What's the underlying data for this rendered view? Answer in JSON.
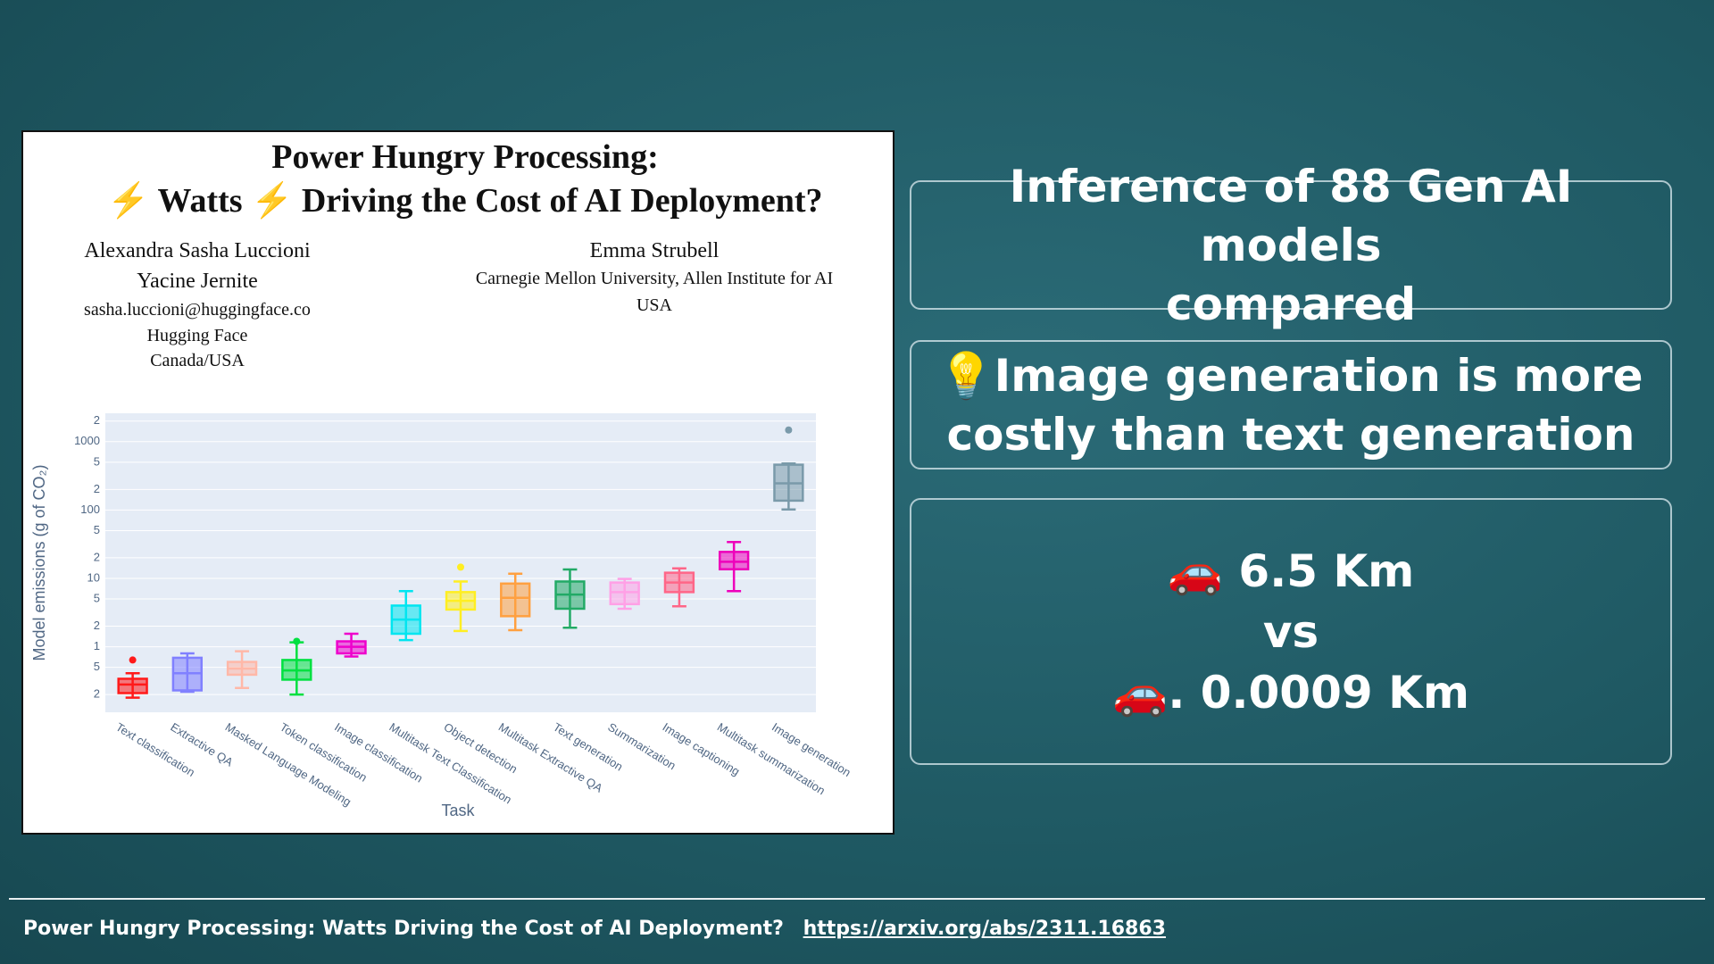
{
  "paper": {
    "title_line1": "Power Hungry Processing:",
    "title_line2": "⚡ Watts ⚡ Driving the Cost of AI Deployment?",
    "left_authors": [
      "Alexandra Sasha Luccioni",
      "Yacine Jernite",
      "sasha.luccioni@huggingface.co",
      "Hugging Face",
      "Canada/USA"
    ],
    "right_authors": [
      "Emma Strubell",
      "Carnegie Mellon University, Allen Institute for AI",
      "USA"
    ]
  },
  "chart_data": {
    "type": "box",
    "ylabel": "Model emissions (g of CO₂)",
    "xlabel": "Task",
    "log_y": true,
    "grid": true,
    "ylim": [
      0.11,
      2600
    ],
    "yticks": [
      {
        "value": 0.2,
        "label": "2"
      },
      {
        "value": 0.5,
        "label": "5"
      },
      1,
      2,
      5,
      10,
      {
        "value": 20,
        "label": "2"
      },
      {
        "value": 50,
        "label": "5"
      },
      100,
      {
        "value": 200,
        "label": "2"
      },
      {
        "value": 500,
        "label": "5"
      },
      1000,
      {
        "value": 2000,
        "label": "2"
      }
    ],
    "categories": [
      "Text classification",
      "Extractive QA",
      "Masked Language Modeling",
      "Token classification",
      "Image classification",
      "Multitask Text Classification",
      "Object detection",
      "Multitask Extractive QA",
      "Text generation",
      "Summarization",
      "Image captioning",
      "Multitask summarization",
      "Image generation"
    ],
    "colors": [
      "#ff1a1a",
      "#8080ff",
      "#ffb8a8",
      "#00e040",
      "#ee00cc",
      "#00e5f0",
      "#ffee22",
      "#ffa040",
      "#22aa66",
      "#ffa0e6",
      "#ff6688",
      "#ee00bb",
      "#7a9aaa"
    ],
    "boxes": [
      {
        "min": 0.18,
        "q1": 0.21,
        "median": 0.28,
        "q3": 0.34,
        "max": 0.41,
        "outliers": [
          0.64
        ]
      },
      {
        "min": 0.22,
        "q1": 0.23,
        "median": 0.41,
        "q3": 0.69,
        "max": 0.8,
        "outliers": []
      },
      {
        "min": 0.25,
        "q1": 0.39,
        "median": 0.48,
        "q3": 0.6,
        "max": 0.86,
        "outliers": []
      },
      {
        "min": 0.2,
        "q1": 0.33,
        "median": 0.45,
        "q3": 0.64,
        "max": 1.16,
        "outliers": [
          1.2
        ]
      },
      {
        "min": 0.72,
        "q1": 0.8,
        "median": 1.0,
        "q3": 1.2,
        "max": 1.55,
        "outliers": []
      },
      {
        "min": 1.25,
        "q1": 1.55,
        "median": 2.5,
        "q3": 4.0,
        "max": 6.5,
        "outliers": []
      },
      {
        "min": 1.7,
        "q1": 3.5,
        "median": 4.7,
        "q3": 6.3,
        "max": 9,
        "outliers": [
          14.6
        ]
      },
      {
        "min": 1.75,
        "q1": 2.8,
        "median": 5.2,
        "q3": 8.4,
        "max": 11.7,
        "outliers": []
      },
      {
        "min": 1.9,
        "q1": 3.6,
        "median": 5.8,
        "q3": 9,
        "max": 13.5,
        "outliers": []
      },
      {
        "min": 3.6,
        "q1": 4.2,
        "median": 6.3,
        "q3": 8.7,
        "max": 9.8,
        "outliers": []
      },
      {
        "min": 3.9,
        "q1": 6.3,
        "median": 8.7,
        "q3": 12.1,
        "max": 14,
        "outliers": []
      },
      {
        "min": 6.5,
        "q1": 13.6,
        "median": 17.5,
        "q3": 24.4,
        "max": 34,
        "outliers": []
      },
      {
        "min": 102,
        "q1": 137,
        "median": 246,
        "q3": 460,
        "max": 480,
        "outliers": [
          1480
        ]
      }
    ]
  },
  "panels": [
    {
      "lines": [
        "Inference of 88 Gen AI models",
        "compared"
      ]
    },
    {
      "lines": [
        "💡Image generation is more",
        "costly than text generation"
      ]
    },
    {
      "lines": [
        "🚗 6.5 Km",
        "vs",
        "🚗. 0.0009 Km"
      ]
    }
  ],
  "footer": {
    "text": "Power Hungry Processing: Watts Driving the Cost of AI Deployment?",
    "link": "https://arxiv.org/abs/2311.16863"
  }
}
